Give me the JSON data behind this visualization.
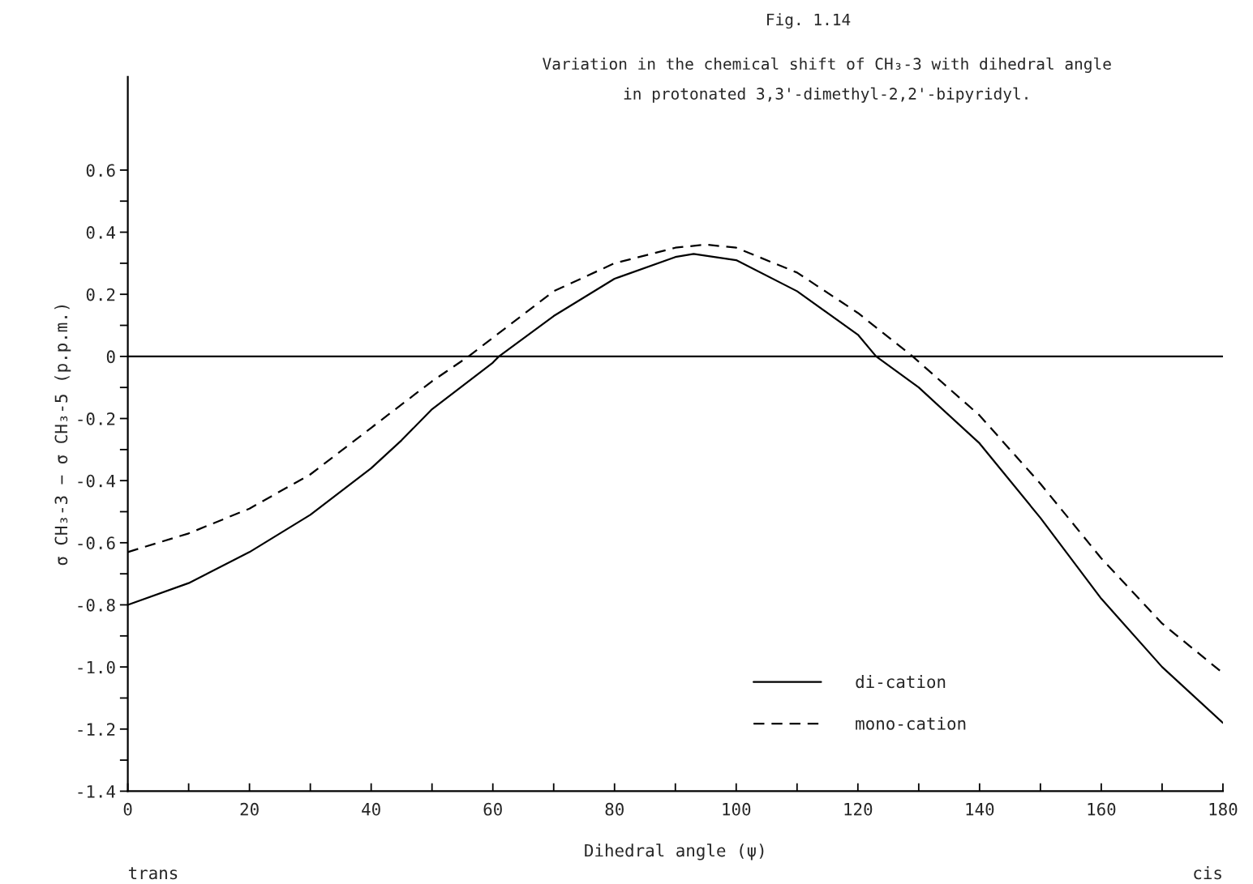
{
  "chart_data": {
    "type": "line",
    "title": "Fig. 1.14",
    "subtitle": "Variation in the chemical shift of CH₃-3 with dihedral angle\nin protonated 3,3'-dimethyl-2,2'-bipyridyl.",
    "xlabel": "Dihedral angle (ψ)",
    "ylabel": "σ CH₃-3 − σ CH₃-5 (p.p.m.)",
    "annotations": [
      "trans",
      "cis"
    ],
    "series": [
      {
        "name": "di-cation",
        "color": "#000000",
        "line_style": "solid",
        "x": [
          0,
          10,
          20,
          30,
          40,
          45,
          50,
          60,
          61,
          70,
          80,
          90,
          93,
          100,
          110,
          120,
          123,
          130,
          140,
          150,
          160,
          170,
          180
        ],
        "values": [
          -0.8,
          -0.73,
          -0.63,
          -0.51,
          -0.36,
          -0.27,
          -0.17,
          -0.02,
          0,
          0.13,
          0.25,
          0.32,
          0.33,
          0.31,
          0.21,
          0.07,
          0,
          -0.1,
          -0.28,
          -0.52,
          -0.78,
          -1.0,
          -1.18
        ]
      },
      {
        "name": "mono-cation",
        "color": "#000000",
        "line_style": "dashed",
        "x": [
          0,
          10,
          20,
          30,
          40,
          50,
          56,
          60,
          70,
          80,
          90,
          95,
          100,
          110,
          120,
          129,
          140,
          150,
          160,
          170,
          180
        ],
        "values": [
          -0.63,
          -0.57,
          -0.49,
          -0.38,
          -0.23,
          -0.08,
          0,
          0.06,
          0.21,
          0.3,
          0.35,
          0.36,
          0.35,
          0.27,
          0.14,
          0,
          -0.19,
          -0.41,
          -0.65,
          -0.86,
          -1.02
        ]
      }
    ],
    "xlim": [
      0,
      180
    ],
    "xticks": [
      0,
      {
        "value": 10,
        "label": null
      },
      20,
      {
        "value": 30,
        "label": null
      },
      40,
      {
        "value": 50,
        "label": null
      },
      60,
      {
        "value": 70,
        "label": null
      },
      80,
      {
        "value": 90,
        "label": null
      },
      100,
      {
        "value": 110,
        "label": null
      },
      120,
      {
        "value": 130,
        "label": null
      },
      140,
      {
        "value": 150,
        "label": null
      },
      160,
      {
        "value": 170,
        "label": null
      },
      180
    ],
    "ylim": [
      -1.4,
      0.9
    ],
    "yticks": [
      -1.4,
      {
        "value": -1.3,
        "label": null
      },
      -1.2,
      {
        "value": -1.1,
        "label": null
      },
      {
        "value": -1.0,
        "label": "-1.0"
      },
      {
        "value": -0.9,
        "label": null
      },
      -0.8,
      {
        "value": -0.7,
        "label": null
      },
      -0.6,
      {
        "value": -0.5,
        "label": null
      },
      -0.4,
      {
        "value": -0.3,
        "label": null
      },
      -0.2,
      {
        "value": -0.1,
        "label": null
      },
      0,
      {
        "value": 0.1,
        "label": null
      },
      0.2,
      {
        "value": 0.3,
        "label": null
      },
      0.4,
      {
        "value": 0.5,
        "label": null
      },
      0.6
    ],
    "ref_lines": [
      {
        "axis": "y",
        "value": 0,
        "color": "#000000"
      }
    ],
    "grid": false,
    "legend": "bottom right"
  }
}
